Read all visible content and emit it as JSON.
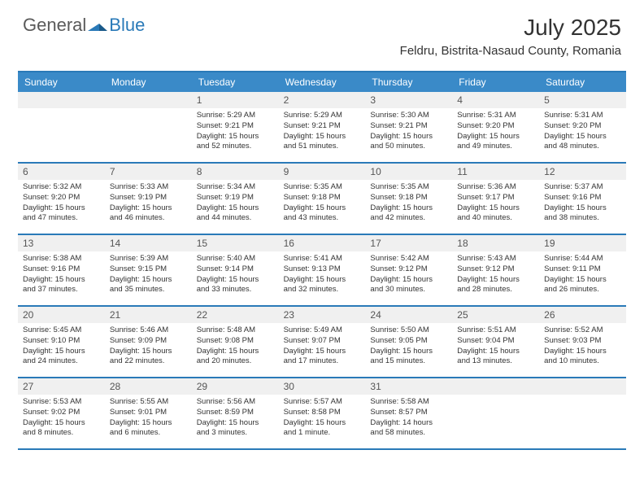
{
  "brand": {
    "part1": "General",
    "part2": "Blue"
  },
  "title": "July 2025",
  "location": "Feldru, Bistrita-Nasaud County, Romania",
  "colors": {
    "header_bg": "#3a8ac8",
    "border": "#2a7ab8",
    "daynum_bg": "#f0f0f0",
    "text": "#333333",
    "logo_gray": "#5a5a5a",
    "logo_blue": "#2a7ab8"
  },
  "day_names": [
    "Sunday",
    "Monday",
    "Tuesday",
    "Wednesday",
    "Thursday",
    "Friday",
    "Saturday"
  ],
  "weeks": [
    [
      null,
      null,
      {
        "n": "1",
        "sr": "5:29 AM",
        "ss": "9:21 PM",
        "dl": "15 hours and 52 minutes."
      },
      {
        "n": "2",
        "sr": "5:29 AM",
        "ss": "9:21 PM",
        "dl": "15 hours and 51 minutes."
      },
      {
        "n": "3",
        "sr": "5:30 AM",
        "ss": "9:21 PM",
        "dl": "15 hours and 50 minutes."
      },
      {
        "n": "4",
        "sr": "5:31 AM",
        "ss": "9:20 PM",
        "dl": "15 hours and 49 minutes."
      },
      {
        "n": "5",
        "sr": "5:31 AM",
        "ss": "9:20 PM",
        "dl": "15 hours and 48 minutes."
      }
    ],
    [
      {
        "n": "6",
        "sr": "5:32 AM",
        "ss": "9:20 PM",
        "dl": "15 hours and 47 minutes."
      },
      {
        "n": "7",
        "sr": "5:33 AM",
        "ss": "9:19 PM",
        "dl": "15 hours and 46 minutes."
      },
      {
        "n": "8",
        "sr": "5:34 AM",
        "ss": "9:19 PM",
        "dl": "15 hours and 44 minutes."
      },
      {
        "n": "9",
        "sr": "5:35 AM",
        "ss": "9:18 PM",
        "dl": "15 hours and 43 minutes."
      },
      {
        "n": "10",
        "sr": "5:35 AM",
        "ss": "9:18 PM",
        "dl": "15 hours and 42 minutes."
      },
      {
        "n": "11",
        "sr": "5:36 AM",
        "ss": "9:17 PM",
        "dl": "15 hours and 40 minutes."
      },
      {
        "n": "12",
        "sr": "5:37 AM",
        "ss": "9:16 PM",
        "dl": "15 hours and 38 minutes."
      }
    ],
    [
      {
        "n": "13",
        "sr": "5:38 AM",
        "ss": "9:16 PM",
        "dl": "15 hours and 37 minutes."
      },
      {
        "n": "14",
        "sr": "5:39 AM",
        "ss": "9:15 PM",
        "dl": "15 hours and 35 minutes."
      },
      {
        "n": "15",
        "sr": "5:40 AM",
        "ss": "9:14 PM",
        "dl": "15 hours and 33 minutes."
      },
      {
        "n": "16",
        "sr": "5:41 AM",
        "ss": "9:13 PM",
        "dl": "15 hours and 32 minutes."
      },
      {
        "n": "17",
        "sr": "5:42 AM",
        "ss": "9:12 PM",
        "dl": "15 hours and 30 minutes."
      },
      {
        "n": "18",
        "sr": "5:43 AM",
        "ss": "9:12 PM",
        "dl": "15 hours and 28 minutes."
      },
      {
        "n": "19",
        "sr": "5:44 AM",
        "ss": "9:11 PM",
        "dl": "15 hours and 26 minutes."
      }
    ],
    [
      {
        "n": "20",
        "sr": "5:45 AM",
        "ss": "9:10 PM",
        "dl": "15 hours and 24 minutes."
      },
      {
        "n": "21",
        "sr": "5:46 AM",
        "ss": "9:09 PM",
        "dl": "15 hours and 22 minutes."
      },
      {
        "n": "22",
        "sr": "5:48 AM",
        "ss": "9:08 PM",
        "dl": "15 hours and 20 minutes."
      },
      {
        "n": "23",
        "sr": "5:49 AM",
        "ss": "9:07 PM",
        "dl": "15 hours and 17 minutes."
      },
      {
        "n": "24",
        "sr": "5:50 AM",
        "ss": "9:05 PM",
        "dl": "15 hours and 15 minutes."
      },
      {
        "n": "25",
        "sr": "5:51 AM",
        "ss": "9:04 PM",
        "dl": "15 hours and 13 minutes."
      },
      {
        "n": "26",
        "sr": "5:52 AM",
        "ss": "9:03 PM",
        "dl": "15 hours and 10 minutes."
      }
    ],
    [
      {
        "n": "27",
        "sr": "5:53 AM",
        "ss": "9:02 PM",
        "dl": "15 hours and 8 minutes."
      },
      {
        "n": "28",
        "sr": "5:55 AM",
        "ss": "9:01 PM",
        "dl": "15 hours and 6 minutes."
      },
      {
        "n": "29",
        "sr": "5:56 AM",
        "ss": "8:59 PM",
        "dl": "15 hours and 3 minutes."
      },
      {
        "n": "30",
        "sr": "5:57 AM",
        "ss": "8:58 PM",
        "dl": "15 hours and 1 minute."
      },
      {
        "n": "31",
        "sr": "5:58 AM",
        "ss": "8:57 PM",
        "dl": "14 hours and 58 minutes."
      },
      null,
      null
    ]
  ],
  "labels": {
    "sunrise": "Sunrise:",
    "sunset": "Sunset:",
    "daylight": "Daylight:"
  }
}
